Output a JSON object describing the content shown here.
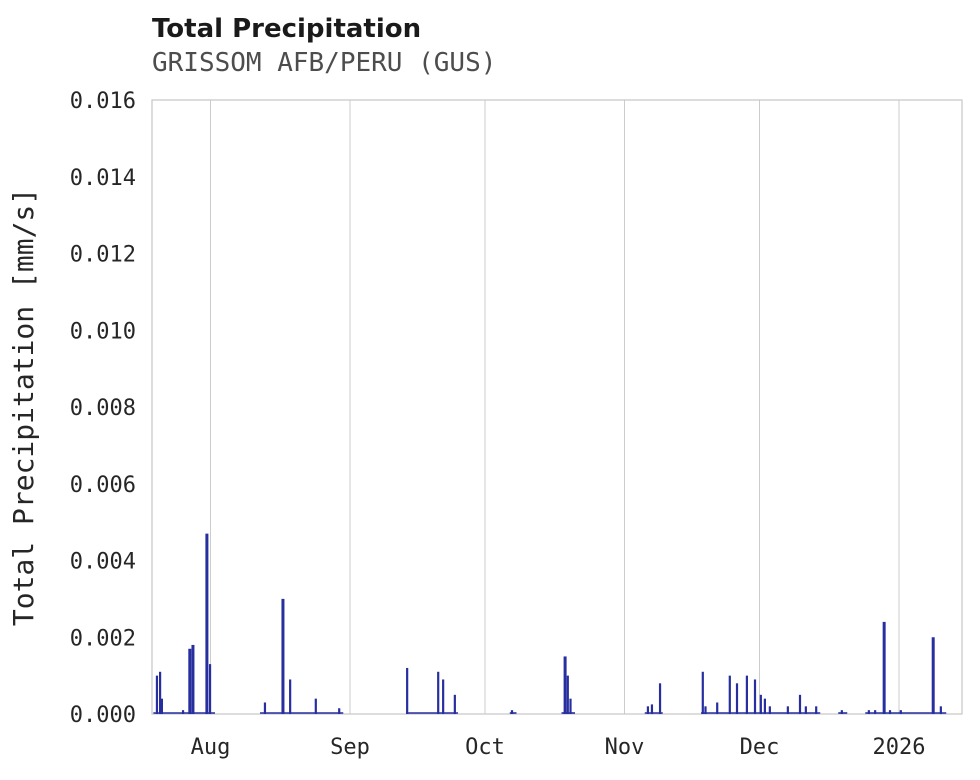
{
  "chart_data": {
    "type": "line",
    "title": "Total Precipitation",
    "subtitle": "GRISSOM AFB/PERU (GUS)",
    "ylabel": "Total Precipitation [mm/s]",
    "xlabel": "",
    "ylim": [
      0,
      0.016
    ],
    "y_tick_step": 0.002,
    "y_tick_decimals": 3,
    "x_domain_days": [
      0,
      180
    ],
    "x_ticks": [
      {
        "label": "Aug",
        "day": 13
      },
      {
        "label": "Sep",
        "day": 44
      },
      {
        "label": "Oct",
        "day": 74
      },
      {
        "label": "Nov",
        "day": 105
      },
      {
        "label": "Dec",
        "day": 135
      },
      {
        "label": "2026",
        "day": 166
      }
    ],
    "grid": "vertical",
    "legend": "none",
    "colors": {
      "series": "#272f9f",
      "grid": "#cccccc",
      "frame": "#c6c6c6",
      "text": "#262626",
      "subtitle_text": "#4d4d4d",
      "background": "#ffffff"
    },
    "series": [
      {
        "name": "Total Precipitation",
        "units": "mm/s",
        "spikes_day_value": [
          [
            1.1,
            0.001
          ],
          [
            1.8,
            0.0011
          ],
          [
            2.2,
            0.0004
          ],
          [
            6.9,
            0.0001
          ],
          [
            8.4,
            0.0017
          ],
          [
            9.1,
            0.0018
          ],
          [
            12.2,
            0.0047
          ],
          [
            12.9,
            0.0013
          ],
          [
            25.1,
            0.0003
          ],
          [
            29.1,
            0.003
          ],
          [
            30.7,
            0.0009
          ],
          [
            36.4,
            0.0004
          ],
          [
            41.6,
            0.00015
          ],
          [
            56.7,
            0.0012
          ],
          [
            63.6,
            0.0011
          ],
          [
            64.7,
            0.0009
          ],
          [
            67.3,
            0.0005
          ],
          [
            80.0,
            0.0001
          ],
          [
            91.8,
            0.0015
          ],
          [
            92.4,
            0.001
          ],
          [
            93.0,
            0.0004
          ],
          [
            110.2,
            0.0002
          ],
          [
            111.1,
            0.00025
          ],
          [
            112.9,
            0.0008
          ],
          [
            122.4,
            0.0011
          ],
          [
            123.0,
            0.0002
          ],
          [
            125.6,
            0.0003
          ],
          [
            128.4,
            0.001
          ],
          [
            130.0,
            0.0008
          ],
          [
            132.2,
            0.001
          ],
          [
            134.0,
            0.0009
          ],
          [
            135.3,
            0.0005
          ],
          [
            136.2,
            0.0004
          ],
          [
            137.3,
            0.0002
          ],
          [
            141.3,
            0.0002
          ],
          [
            144.0,
            0.0005
          ],
          [
            145.3,
            0.0002
          ],
          [
            147.6,
            0.0002
          ],
          [
            153.3,
            0.0001
          ],
          [
            159.3,
            0.0001
          ],
          [
            160.7,
            0.0001
          ],
          [
            162.7,
            0.0024
          ],
          [
            164.0,
            0.0001
          ],
          [
            166.4,
            0.0001
          ],
          [
            173.6,
            0.002
          ],
          [
            175.3,
            0.0002
          ]
        ],
        "zero_line_segments_days": [
          [
            0.3,
            14
          ],
          [
            24,
            42.5
          ],
          [
            56.5,
            68
          ],
          [
            79.5,
            81
          ],
          [
            91,
            94
          ],
          [
            109.5,
            113.5
          ],
          [
            122,
            148.5
          ],
          [
            152.5,
            154.5
          ],
          [
            158.5,
            176.5
          ]
        ]
      }
    ]
  }
}
